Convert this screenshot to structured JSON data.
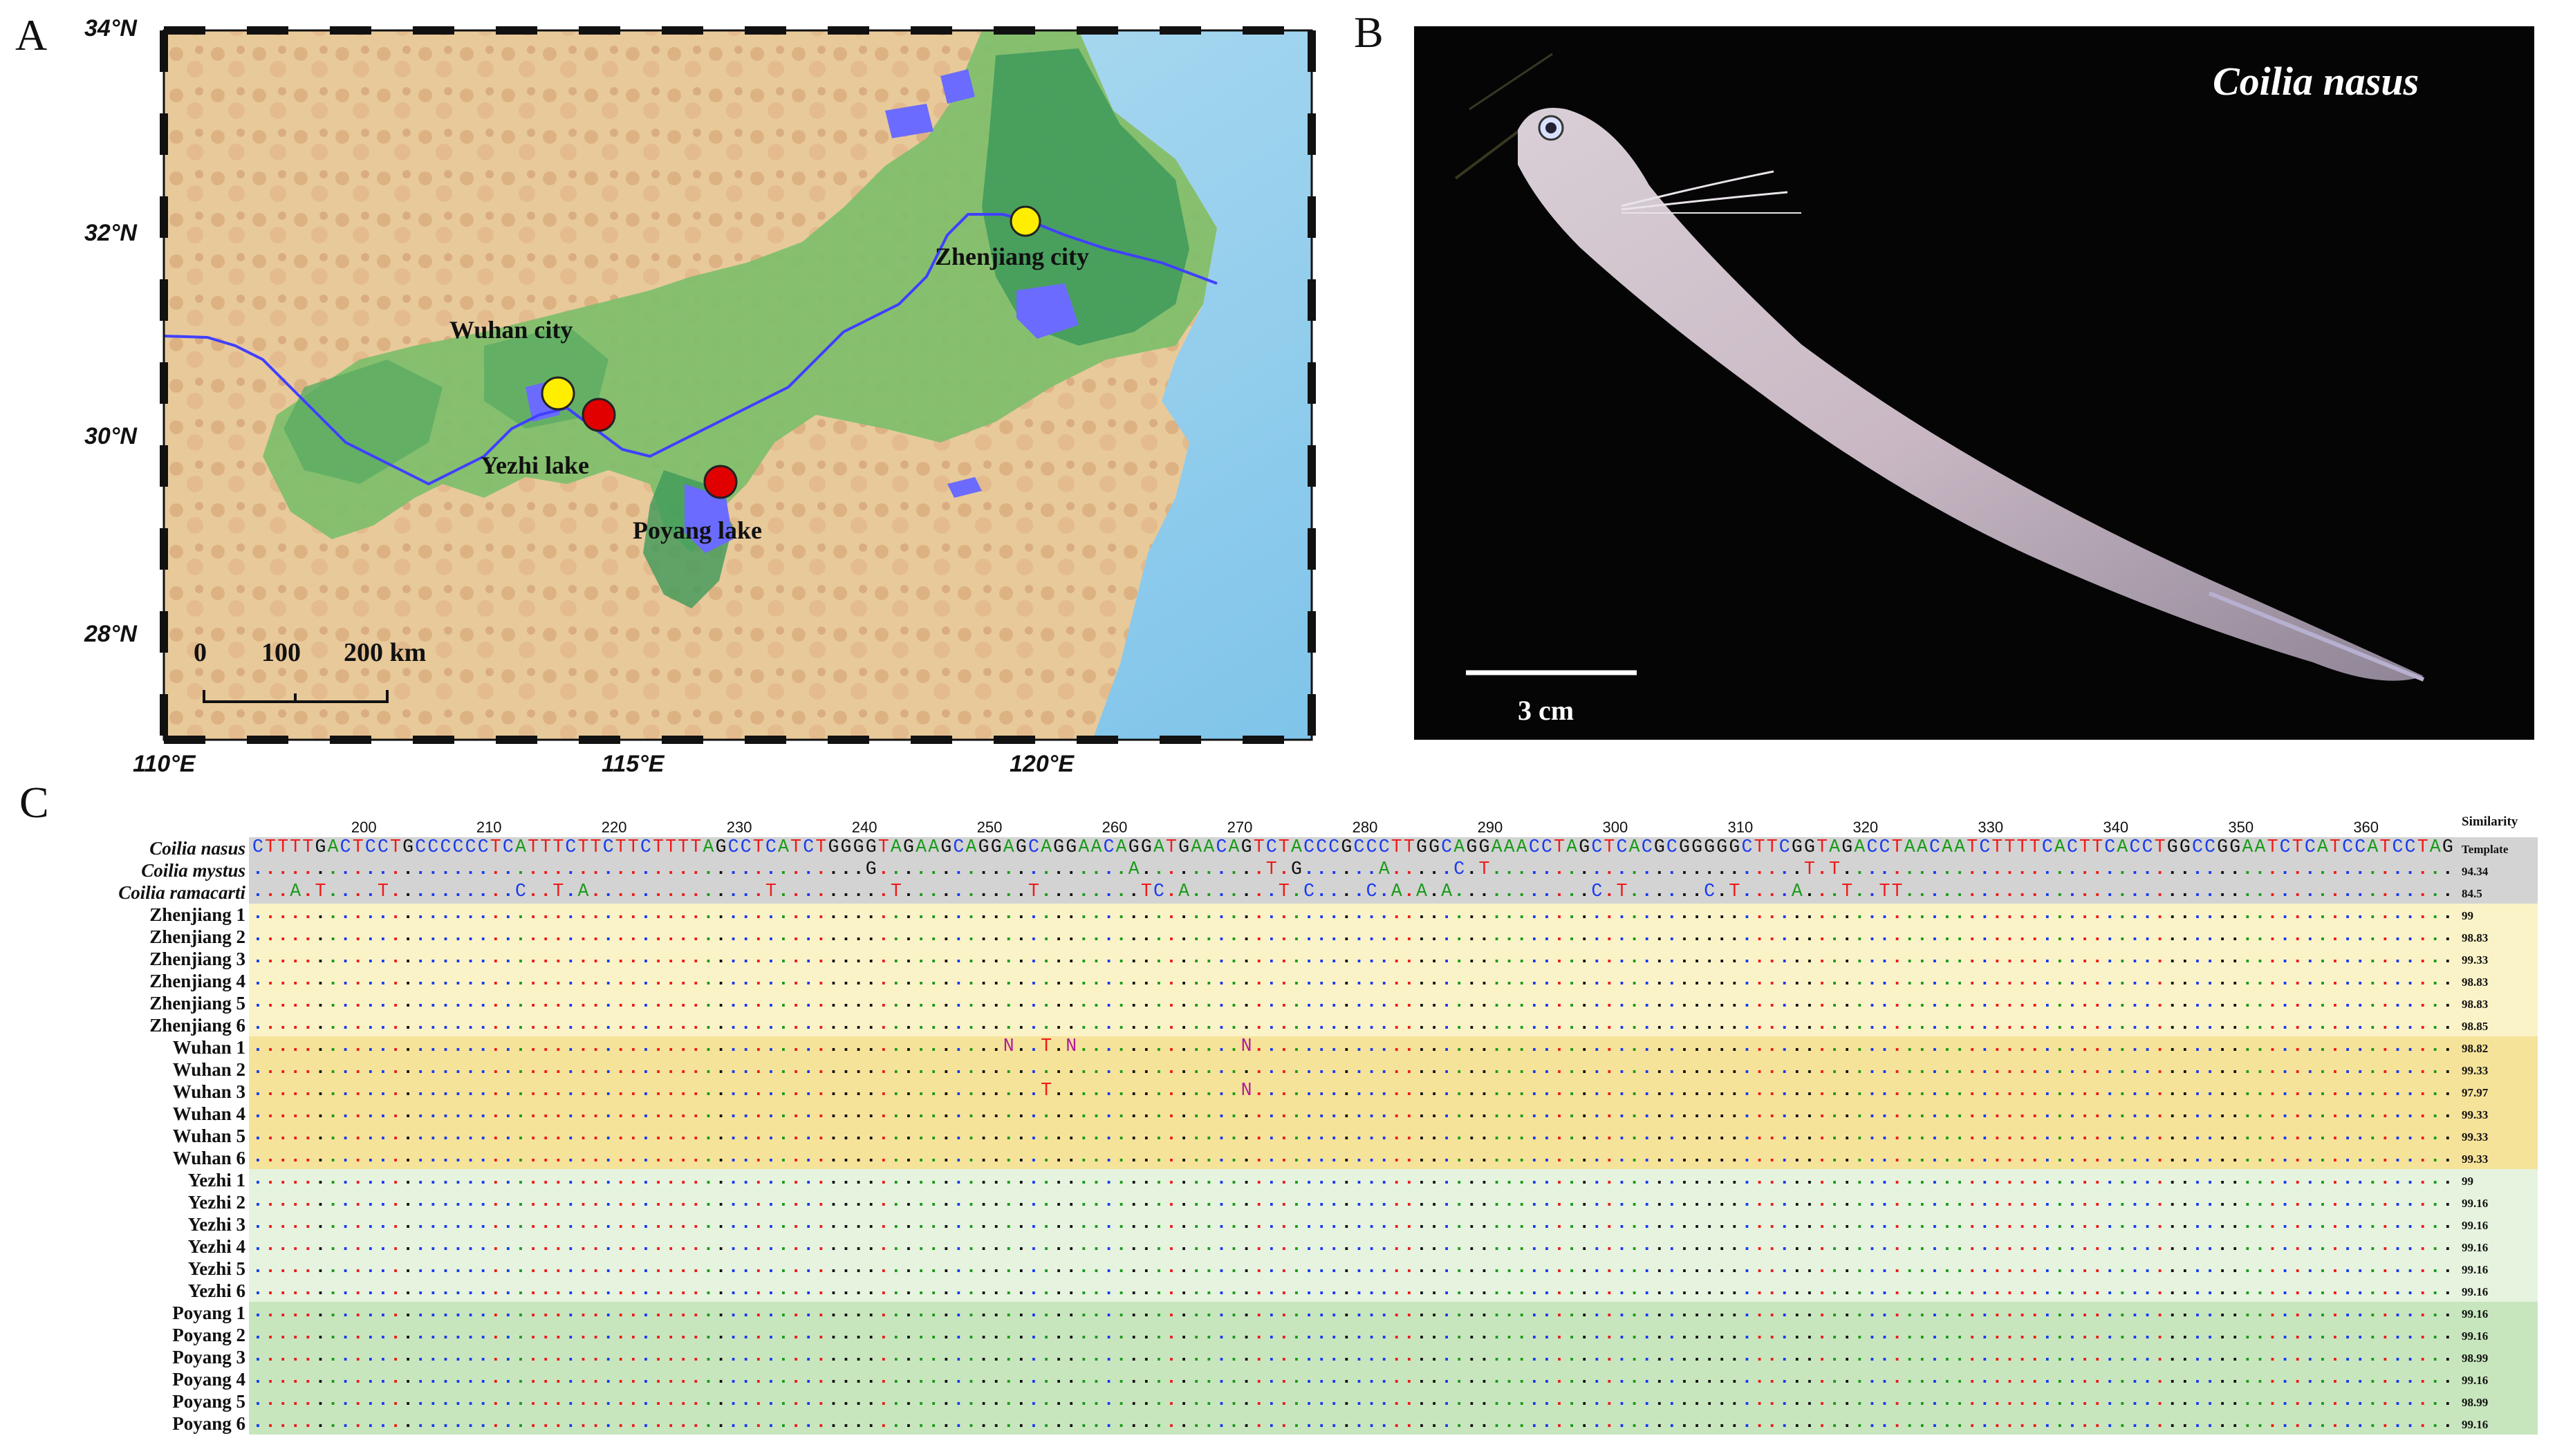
{
  "panels": {
    "a": "A",
    "b": "B",
    "c": "C"
  },
  "map": {
    "lat_labels": [
      "34°N",
      "32°N",
      "30°N",
      "28°N"
    ],
    "lon_labels": [
      "110°E",
      "115°E",
      "120°E"
    ],
    "cities": {
      "zhenjiang": "Zhenjiang city",
      "wuhan": "Wuhan city",
      "yezhi": "Yezhi lake",
      "poyang": "Poyang lake"
    },
    "scale_labels": [
      "0",
      "100",
      "200 km"
    ],
    "colors": {
      "yellow_marker": "#ffee00",
      "red_marker": "#e00000",
      "river": "#4040ff"
    }
  },
  "photo": {
    "species": "Coilia nasus",
    "scale_label": "3 cm"
  },
  "alignment": {
    "positions": [
      "200",
      "210",
      "220",
      "230",
      "240",
      "250",
      "260",
      "270",
      "280",
      "290",
      "300",
      "310",
      "320",
      "330",
      "340",
      "350",
      "360"
    ],
    "similarity_header": "Similarity",
    "rows": [
      {
        "label": "Coilia nasus",
        "italic": true,
        "similarity": "Template"
      },
      {
        "label": "Coilia mystus",
        "italic": true,
        "similarity": "94.34"
      },
      {
        "label": "Coilia ramacarti",
        "italic": true,
        "similarity": "84.5"
      },
      {
        "label": "Zhenjiang 1",
        "similarity": "99"
      },
      {
        "label": "Zhenjiang 2",
        "similarity": "98.83"
      },
      {
        "label": "Zhenjiang 3",
        "similarity": "99.33"
      },
      {
        "label": "Zhenjiang 4",
        "similarity": "98.83"
      },
      {
        "label": "Zhenjiang 5",
        "similarity": "98.83"
      },
      {
        "label": "Zhenjiang 6",
        "similarity": "98.85"
      },
      {
        "label": "Wuhan 1",
        "similarity": "98.82"
      },
      {
        "label": "Wuhan 2",
        "similarity": "99.33"
      },
      {
        "label": "Wuhan 3",
        "similarity": "97.97"
      },
      {
        "label": "Wuhan 4",
        "similarity": "99.33"
      },
      {
        "label": "Wuhan 5",
        "similarity": "99.33"
      },
      {
        "label": "Wuhan 6",
        "similarity": "99.33"
      },
      {
        "label": "Yezhi 1",
        "similarity": "99"
      },
      {
        "label": "Yezhi 2",
        "similarity": "99.16"
      },
      {
        "label": "Yezhi 3",
        "similarity": "99.16"
      },
      {
        "label": "Yezhi 4",
        "similarity": "99.16"
      },
      {
        "label": "Yezhi 5",
        "similarity": "99.16"
      },
      {
        "label": "Yezhi 6",
        "similarity": "99.16"
      },
      {
        "label": "Poyang 1",
        "similarity": "99.16"
      },
      {
        "label": "Poyang 2",
        "similarity": "99.16"
      },
      {
        "label": "Poyang 3",
        "similarity": "98.99"
      },
      {
        "label": "Poyang 4",
        "similarity": "99.16"
      },
      {
        "label": "Poyang 5",
        "similarity": "98.99"
      },
      {
        "label": "Poyang 6",
        "similarity": "99.16"
      }
    ],
    "template_sequence": "CTTTTGACTCCTGCCCCCCTCATTTCTTCTTCTTTTAGCCTCATCTGGGGTAGAAGCAGGAGCAGGAACAGGATGAACAGTCTACCCGCCCTTGGCAGGAAACCTAGCTCACGCGGGGGCTTCGGTAGACCTAACAATCTTTTCACTTCACCTGGCCGGAATCTCATCCATCCTAG",
    "variants": {
      "Coilia mystus": [
        [
          49,
          "G"
        ],
        [
          70,
          "A"
        ],
        [
          81,
          "T"
        ],
        [
          83,
          "G"
        ],
        [
          90,
          "A"
        ],
        [
          96,
          "C"
        ],
        [
          98,
          "T"
        ],
        [
          124,
          "T"
        ],
        [
          126,
          "T"
        ]
      ],
      "Coilia ramacarti": [
        [
          3,
          "A"
        ],
        [
          5,
          "T"
        ],
        [
          10,
          "T"
        ],
        [
          21,
          "C"
        ],
        [
          24,
          "T"
        ],
        [
          26,
          "A"
        ],
        [
          41,
          "T"
        ],
        [
          51,
          "T"
        ],
        [
          62,
          "T"
        ],
        [
          71,
          "T"
        ],
        [
          72,
          "C"
        ],
        [
          74,
          "A"
        ],
        [
          82,
          "T"
        ],
        [
          84,
          "C"
        ],
        [
          89,
          "C"
        ],
        [
          91,
          "A"
        ],
        [
          93,
          "A"
        ],
        [
          95,
          "A"
        ],
        [
          107,
          "C"
        ],
        [
          109,
          "T"
        ],
        [
          116,
          "C"
        ],
        [
          118,
          "T"
        ],
        [
          123,
          "A"
        ],
        [
          127,
          "T"
        ],
        [
          130,
          "T"
        ],
        [
          131,
          "T"
        ]
      ],
      "Wuhan 1": [
        [
          60,
          "N"
        ],
        [
          63,
          "T"
        ],
        [
          65,
          "N"
        ],
        [
          79,
          "N"
        ]
      ],
      "Wuhan 3": [
        [
          63,
          "T"
        ],
        [
          79,
          "N"
        ]
      ]
    },
    "colors": {
      "A": "#1a9a1a",
      "C": "#1a3aee",
      "G": "#111111",
      "T": "#ee1a1a",
      "N": "#b01a9a"
    },
    "bands": {
      "outgroup": "#d3d3d3",
      "zhenjiang": "#fbf3c8",
      "wuhan": "#f6e39a",
      "yezhi": "#e6f3df",
      "poyang": "#c8e6be"
    }
  }
}
